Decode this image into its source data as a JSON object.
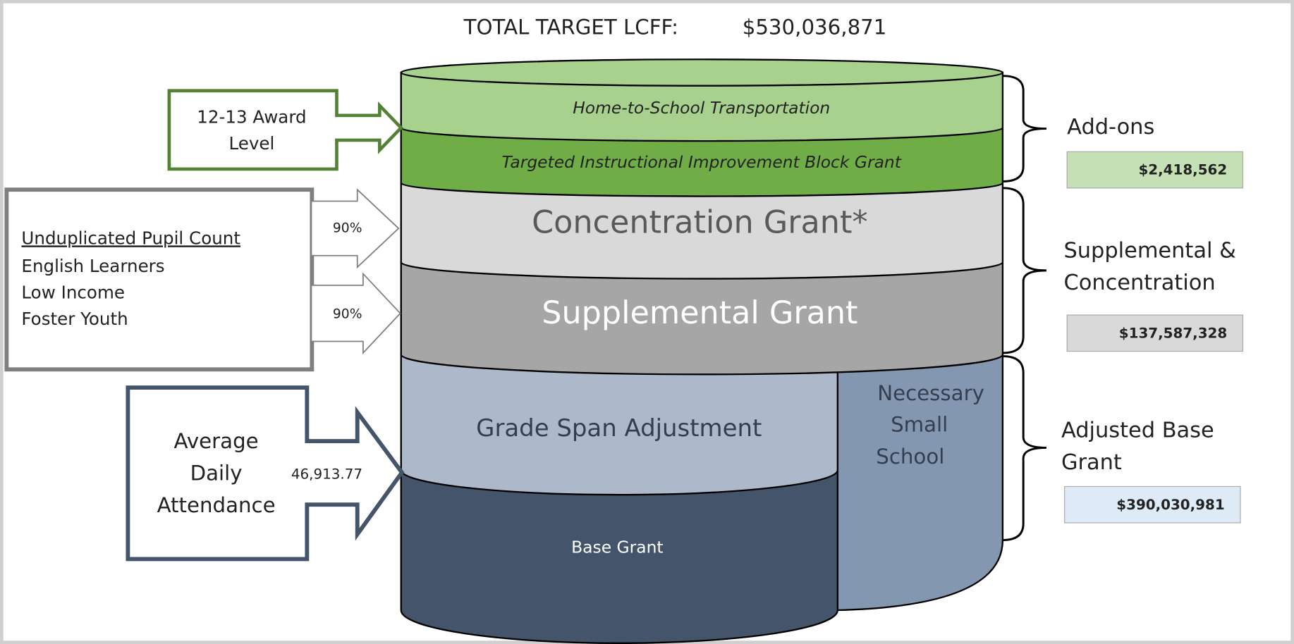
{
  "title": {
    "label": "TOTAL TARGET LCFF:",
    "value": "$530,036,871"
  },
  "layers": {
    "transportation": "Home-to-School Transportation",
    "tiibg": "Targeted Instructional Improvement Block Grant",
    "concentration": "Concentration Grant*",
    "supplemental": "Supplemental Grant",
    "grade_span": "Grade Span Adjustment",
    "small_school": [
      "Necessary",
      "Small",
      "School"
    ],
    "base": "Base Grant"
  },
  "callouts": {
    "award": [
      "12-13 Award",
      "Level"
    ],
    "pupil": {
      "heading": "Unduplicated Pupil Count",
      "items": [
        "English Learners",
        "Low Income",
        "Foster Youth"
      ]
    },
    "percents": [
      "90%",
      "90%"
    ],
    "ada": {
      "label": [
        "Average",
        "Daily",
        "Attendance"
      ],
      "value": "46,913.77"
    }
  },
  "groups": [
    {
      "label": [
        "Add-ons"
      ],
      "value": "$2,418,562"
    },
    {
      "label": [
        "Supplemental &",
        "Concentration"
      ],
      "value": "$137,587,328"
    },
    {
      "label": [
        "Adjusted Base",
        "Grant"
      ],
      "value": "$390,030,981"
    }
  ]
}
